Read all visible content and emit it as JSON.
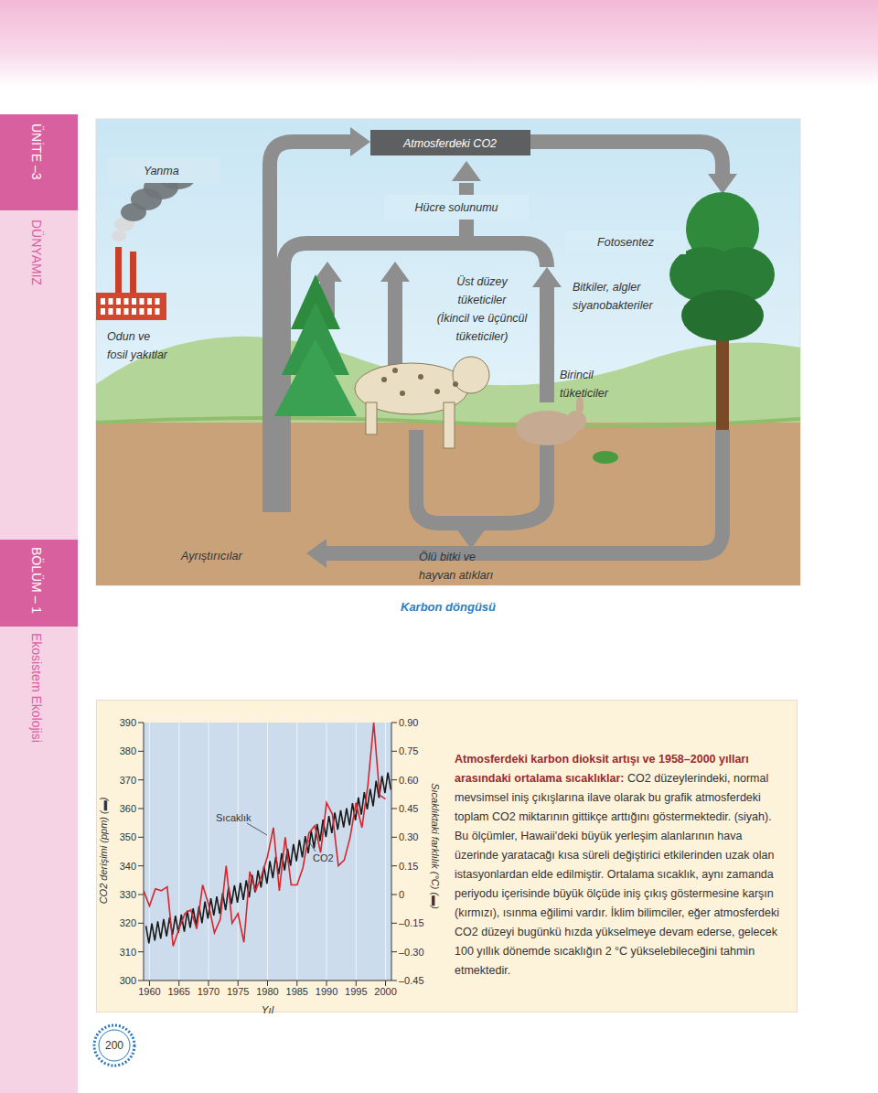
{
  "header": {
    "unit": "ÜNİTE –3",
    "unit_title": "DÜNYAMIZ",
    "section": "BÖLÜM – 1",
    "section_title": "Ekosistem Ekolojisi"
  },
  "diagram": {
    "caption": "Karbon döngüsü",
    "labels": {
      "atmosphere": "Atmosferdeki CO2",
      "combustion": "Yanma",
      "respiration": "Hücre solunumu",
      "photosynthesis": "Fotosentez",
      "fuels": [
        "Odun ve",
        "fosil yakıtlar"
      ],
      "higher_consumers": [
        "Üst düzey",
        "tüketiciler",
        "(İkincil ve üçüncül",
        "tüketiciler)"
      ],
      "producers": [
        "Bitkiler, algler",
        "siyanobakteriler"
      ],
      "primary_consumers": [
        "Birincil",
        "tüketiciler"
      ],
      "decomposers": "Ayrıştırıcılar",
      "detritus": [
        "Ölü bitki ve",
        "hayvan atıkları"
      ]
    }
  },
  "chart_data": {
    "type": "line",
    "xlabel": "Yıl",
    "ylabel": "CO2 derişimi (ppm) (▬)",
    "y2label": "Sıcaklıktaki farklılık (°C) (▬)",
    "xlim": [
      1959,
      2001
    ],
    "xticks": [
      1960,
      1965,
      1970,
      1975,
      1980,
      1985,
      1990,
      1995,
      2000
    ],
    "ylim": [
      300,
      390
    ],
    "yticks": [
      300,
      310,
      320,
      330,
      340,
      350,
      360,
      370,
      380,
      390
    ],
    "y2lim": [
      -0.45,
      0.9
    ],
    "y2ticks": [
      {
        "value": -0.45,
        "label": "–0.45"
      },
      {
        "value": -0.3,
        "label": "–0.30"
      },
      {
        "value": -0.15,
        "label": "–0.15"
      },
      0,
      0.15,
      {
        "value": 0.3,
        "label": "0.30"
      },
      0.45,
      {
        "value": 0.6,
        "label": "0.60"
      },
      0.75,
      {
        "value": 0.9,
        "label": "0.90"
      }
    ],
    "grid": true,
    "series": [
      {
        "name": "CO2",
        "color": "#1a1a1a",
        "axis": "y",
        "x": [
          1959.4,
          1959.9,
          1960.4,
          1960.9,
          1961.4,
          1961.9,
          1962.4,
          1962.9,
          1963.4,
          1963.9,
          1964.4,
          1964.9,
          1965.4,
          1965.9,
          1966.4,
          1966.9,
          1967.4,
          1967.9,
          1968.4,
          1968.9,
          1969.4,
          1969.9,
          1970.4,
          1970.9,
          1971.4,
          1971.9,
          1972.4,
          1972.9,
          1973.4,
          1973.9,
          1974.4,
          1974.9,
          1975.4,
          1975.9,
          1976.4,
          1976.9,
          1977.4,
          1977.9,
          1978.4,
          1978.9,
          1979.4,
          1979.9,
          1980.4,
          1980.9,
          1981.4,
          1981.9,
          1982.4,
          1982.9,
          1983.4,
          1983.9,
          1984.4,
          1984.9,
          1985.4,
          1985.9,
          1986.4,
          1986.9,
          1987.4,
          1987.9,
          1988.4,
          1988.9,
          1989.4,
          1989.9,
          1990.4,
          1990.9,
          1991.4,
          1991.9,
          1992.4,
          1992.9,
          1993.4,
          1993.9,
          1994.4,
          1994.9,
          1995.4,
          1995.9,
          1996.4,
          1996.9,
          1997.4,
          1997.9,
          1998.4,
          1998.9,
          1999.4,
          1999.9,
          2000.4,
          2000.9
        ],
        "values": [
          319.0,
          313.0,
          319.9,
          313.9,
          320.6,
          314.6,
          321.4,
          315.4,
          322.0,
          316.0,
          322.6,
          316.6,
          323.0,
          317.0,
          324.4,
          318.4,
          325.2,
          319.2,
          326.0,
          320.0,
          327.6,
          321.6,
          328.7,
          322.7,
          329.3,
          323.3,
          330.5,
          324.5,
          332.7,
          326.7,
          333.2,
          327.2,
          334.1,
          328.1,
          335.0,
          329.0,
          336.8,
          330.8,
          338.4,
          332.4,
          339.8,
          333.8,
          341.7,
          335.7,
          343.1,
          337.1,
          344.4,
          338.4,
          346.0,
          340.0,
          347.6,
          341.6,
          349.0,
          343.0,
          350.4,
          344.4,
          352.2,
          346.2,
          354.6,
          348.6,
          356.1,
          350.1,
          357.4,
          351.4,
          358.6,
          352.6,
          359.4,
          353.4,
          360.1,
          354.1,
          361.9,
          355.9,
          363.9,
          357.9,
          365.7,
          359.7,
          366.8,
          360.8,
          369.7,
          363.7,
          371.4,
          365.4,
          372.6,
          366.6
        ]
      },
      {
        "name": "Sıcaklık",
        "color": "#d7262b",
        "axis": "y2",
        "x": [
          1959,
          1960,
          1961,
          1962,
          1963,
          1964,
          1965,
          1966,
          1967,
          1968,
          1969,
          1970,
          1971,
          1972,
          1973,
          1974,
          1975,
          1976,
          1977,
          1978,
          1979,
          1980,
          1981,
          1982,
          1983,
          1984,
          1985,
          1986,
          1987,
          1988,
          1989,
          1990,
          1991,
          1992,
          1993,
          1994,
          1995,
          1996,
          1997,
          1998,
          1999,
          2000
        ],
        "values": [
          0.02,
          -0.06,
          0.03,
          0.02,
          0.04,
          -0.27,
          -0.18,
          -0.1,
          -0.08,
          -0.18,
          0.05,
          -0.05,
          -0.2,
          -0.13,
          0.15,
          -0.15,
          -0.1,
          -0.25,
          0.12,
          0.02,
          0.1,
          0.2,
          0.35,
          0.02,
          0.3,
          0.05,
          0.05,
          0.14,
          0.32,
          0.36,
          0.22,
          0.48,
          0.42,
          0.15,
          0.18,
          0.3,
          0.48,
          0.35,
          0.57,
          0.9,
          0.52,
          0.5
        ]
      }
    ]
  },
  "caption": {
    "title": "Atmosferdeki karbon dioksit artışı ve 1958–2000 yılları arasındaki ortalama sıcaklıklar:",
    "text": "CO2 düzeylerindeki, normal mevsimsel iniş çıkışlarına ilave olarak bu grafik atmosferdeki toplam CO2 miktarının gittikçe arttığını göstermektedir. (siyah). Bu ölçümler, Hawaii'deki büyük yerleşim alanlarının hava üzerinde yaratacağı kısa süreli değiştirici etkilerinden uzak olan istasyonlardan elde edilmiştir. Ortalama sıcaklık, aynı zamanda periyodu içerisinde büyük ölçüde iniş çıkış göstermesine karşın (kırmızı), ısınma eğilimi vardır. İklim bilimciler, eğer atmosferdeki CO2 düzeyi bugünkü hızda yükselmeye devam ederse, gelecek 100 yıllık dönemde sıcaklığın 2 °C yükselebileceğini tahmin etmektedir."
  },
  "page_number": "200"
}
